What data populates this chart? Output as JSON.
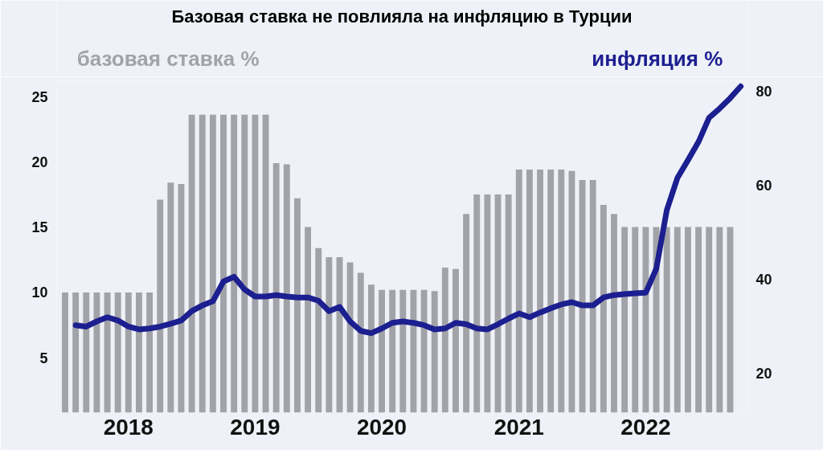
{
  "chart_data": {
    "type": "bar",
    "title": "Базовая ставка не повлияла на инфляцию в Турции",
    "ylabel": "базовая ставка %",
    "y2label": "инфляция %",
    "categories": [
      null,
      null,
      null,
      null,
      null,
      null,
      "2018",
      null,
      null,
      null,
      null,
      null,
      null,
      null,
      null,
      null,
      null,
      null,
      "2019",
      null,
      null,
      null,
      null,
      null,
      null,
      null,
      null,
      null,
      null,
      null,
      "2020",
      null,
      null,
      null,
      null,
      null,
      null,
      null,
      null,
      null,
      null,
      null,
      null,
      "2021",
      null,
      null,
      null,
      null,
      null,
      null,
      null,
      null,
      null,
      null,
      null,
      "2022",
      null,
      null,
      null,
      null,
      null,
      null,
      null,
      null,
      null
    ],
    "series": [
      {
        "color": "#a2a3a8",
        "values": [
          10,
          10,
          10,
          10,
          10,
          10,
          10,
          10,
          10,
          17.1,
          18.4,
          18.3,
          23.6,
          23.6,
          23.6,
          23.6,
          23.6,
          23.6,
          23.6,
          23.6,
          19.9,
          19.8,
          17.2,
          15.0,
          13.4,
          12.7,
          12.7,
          12.3,
          11.5,
          10.6,
          10.2,
          10.2,
          10.2,
          10.2,
          10.2,
          10.1,
          11.9,
          11.8,
          16.0,
          17.5,
          17.5,
          17.5,
          17.5,
          19.4,
          19.4,
          19.4,
          19.4,
          19.4,
          19.3,
          18.6,
          18.6,
          16.7,
          16.0,
          15,
          15,
          15,
          15,
          15,
          15,
          15,
          15,
          15,
          15,
          15,
          null
        ]
      },
      {
        "type": "line",
        "axis": "y2",
        "color": "#1c1f8f",
        "values": [
          null,
          30.2,
          29.9,
          31.0,
          31.9,
          31.2,
          29.9,
          29.3,
          29.5,
          29.9,
          30.5,
          31.2,
          33.2,
          34.4,
          35.3,
          39.5,
          40.5,
          37.8,
          36.3,
          36.3,
          36.6,
          36.3,
          36.1,
          36.1,
          35.4,
          33.2,
          34.1,
          31.0,
          29.0,
          28.5,
          29.5,
          30.7,
          31.0,
          30.7,
          30.2,
          29.3,
          29.5,
          30.7,
          30.4,
          29.5,
          29.3,
          30.4,
          31.6,
          32.7,
          31.9,
          32.9,
          33.8,
          34.6,
          35.1,
          34.4,
          34.4,
          36.1,
          36.6,
          36.8,
          37.0,
          37.1,
          42.2,
          54.7,
          61.5,
          65.3,
          69.2,
          74.3,
          76.3,
          78.5,
          81
        ]
      }
    ],
    "ylim": [
      0.8,
      26.2
    ],
    "yticks": [
      5,
      10,
      15,
      20,
      25
    ],
    "y2lim": [
      11.6,
      82.2
    ],
    "y2ticks": [
      20,
      40,
      60,
      80
    ],
    "grid": false,
    "line_style": "solid"
  }
}
